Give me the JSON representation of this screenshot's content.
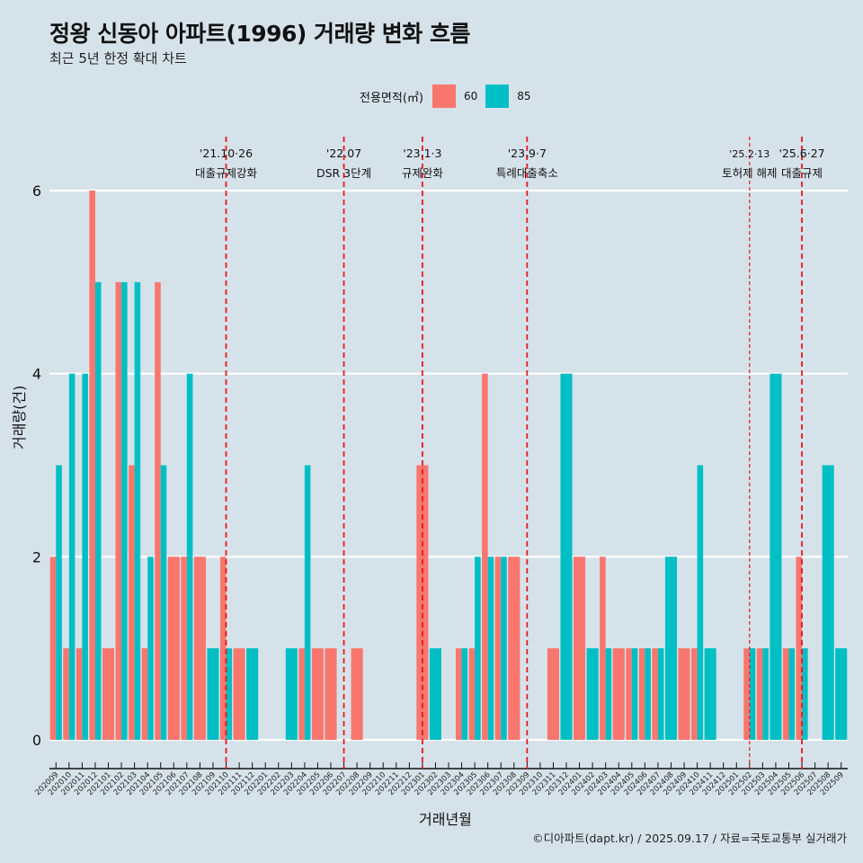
{
  "header": {
    "title": "정왕 신동아 아파트(1996) 거래량 변화 흐름",
    "subtitle": "최근 5년 한정 확대 차트"
  },
  "legend": {
    "title": "전용면적(㎡)",
    "items": [
      {
        "label": "60",
        "color": "#f8766d"
      },
      {
        "label": "85",
        "color": "#00bfc4"
      }
    ]
  },
  "caption": "©디아파트(dapt.kr) / 2025.09.17 / 자료=국토교통부 실거래가",
  "chart_data": {
    "type": "bar",
    "title": "정왕 신동아 아파트(1996) 거래량 변화 흐름",
    "subtitle": "최근 5년 한정 확대 차트",
    "xlabel": "거래년월",
    "ylabel": "거래량(건)",
    "ylim": [
      0,
      6
    ],
    "yticks": [
      "0",
      "2",
      "4",
      "6"
    ],
    "grid": "horizontal",
    "legend_position": "top",
    "categories": [
      "202009",
      "202010",
      "202011",
      "202012",
      "202101",
      "202102",
      "202103",
      "202104",
      "202105",
      "202106",
      "202107",
      "202108",
      "202109",
      "202110",
      "202111",
      "202112",
      "202201",
      "202202",
      "202203",
      "202204",
      "202205",
      "202206",
      "202207",
      "202208",
      "202209",
      "202210",
      "202211",
      "202212",
      "202301",
      "202302",
      "202303",
      "202304",
      "202305",
      "202306",
      "202307",
      "202308",
      "202309",
      "202310",
      "202311",
      "202312",
      "202401",
      "202402",
      "202403",
      "202404",
      "202405",
      "202406",
      "202407",
      "202408",
      "202409",
      "202410",
      "202411",
      "202412",
      "202501",
      "202502",
      "202503",
      "202504",
      "202505",
      "202506",
      "202507",
      "202508",
      "202509"
    ],
    "series": [
      {
        "name": "60",
        "color": "#f8766d",
        "values": [
          2,
          1,
          1,
          6,
          1,
          5,
          3,
          1,
          5,
          2,
          2,
          2,
          0,
          2,
          1,
          0,
          0,
          0,
          0,
          1,
          1,
          1,
          0,
          1,
          0,
          0,
          0,
          0,
          3,
          0,
          0,
          1,
          1,
          4,
          2,
          2,
          0,
          0,
          1,
          0,
          2,
          0,
          2,
          1,
          1,
          1,
          1,
          0,
          1,
          1,
          0,
          0,
          0,
          1,
          1,
          0,
          1,
          2,
          0,
          0,
          0
        ]
      },
      {
        "name": "85",
        "color": "#00bfc4",
        "values": [
          3,
          4,
          4,
          5,
          0,
          5,
          5,
          2,
          3,
          0,
          4,
          0,
          1,
          1,
          0,
          1,
          0,
          0,
          1,
          3,
          0,
          0,
          0,
          0,
          0,
          0,
          0,
          0,
          0,
          1,
          0,
          1,
          2,
          2,
          2,
          0,
          0,
          0,
          0,
          4,
          0,
          1,
          1,
          0,
          1,
          1,
          1,
          2,
          0,
          3,
          1,
          0,
          0,
          1,
          1,
          4,
          1,
          1,
          0,
          3,
          1
        ]
      }
    ],
    "annotations": [
      {
        "x": "202110",
        "date": "'21.10·26",
        "label": "대출규제강화",
        "style": "dashed"
      },
      {
        "x": "202207",
        "date": "'22.07",
        "label": "DSR 3단계",
        "style": "dashed"
      },
      {
        "x": "202301",
        "date": "'23.1·3",
        "label": "규제완화",
        "style": "dashed"
      },
      {
        "x": "202309",
        "date": "'23.9·7",
        "label": "특례대출축소",
        "style": "dashed"
      },
      {
        "x": "202502",
        "date": "'25.2·13",
        "label": "토허제 해제",
        "style": "thin-dashed"
      },
      {
        "x": "202506",
        "date": "'25.6·27",
        "label": "대출규제",
        "style": "dashed"
      }
    ],
    "annotation_color": "#e8191e"
  }
}
